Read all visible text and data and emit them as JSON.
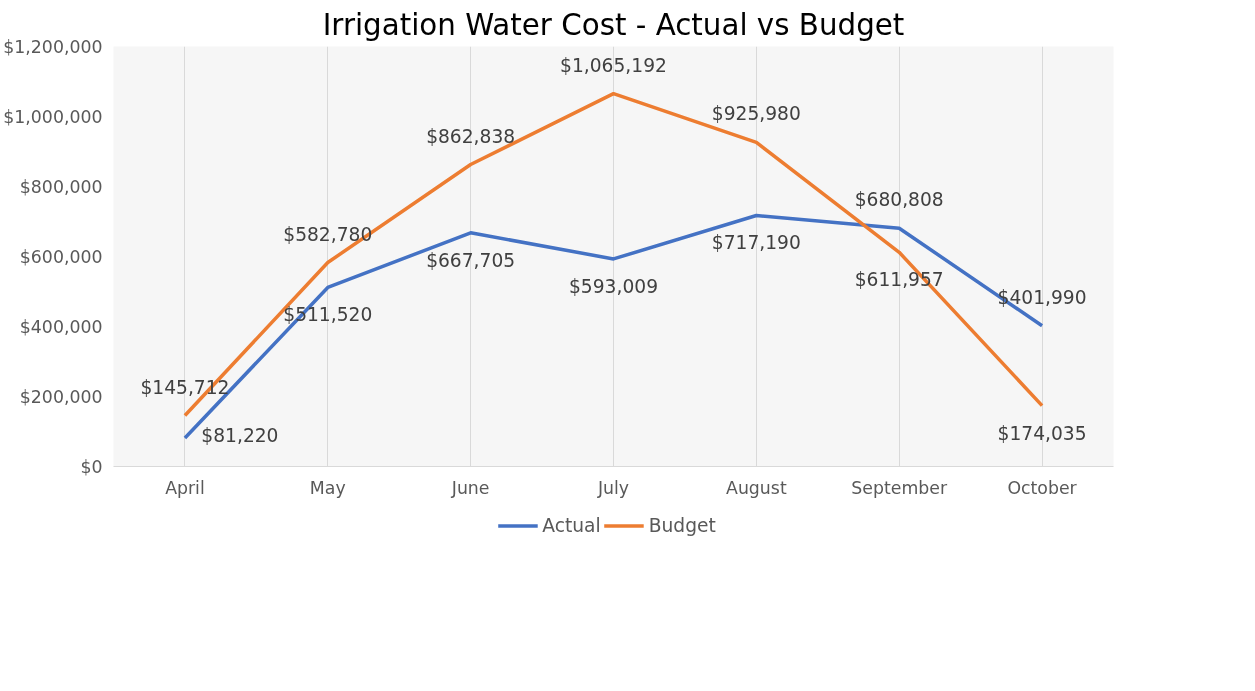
{
  "chart_data": {
    "type": "line",
    "title": "Irrigation Water Cost - Actual vs Budget",
    "categories": [
      "April",
      "May",
      "June",
      "July",
      "August",
      "September",
      "October"
    ],
    "series": [
      {
        "name": "Actual",
        "color": "#4472c4",
        "values": [
          81220,
          511520,
          667705,
          593009,
          717190,
          680808,
          401990
        ]
      },
      {
        "name": "Budget",
        "color": "#ed7d31",
        "values": [
          145712,
          582780,
          862838,
          1065192,
          925980,
          611957,
          174035
        ]
      }
    ],
    "ylim": [
      0,
      1200000
    ],
    "yticks": [
      {
        "value": 0,
        "label": "$0"
      },
      {
        "value": 200000,
        "label": "$200,000"
      },
      {
        "value": 400000,
        "label": "$400,000"
      },
      {
        "value": 600000,
        "label": "$600,000"
      },
      {
        "value": 800000,
        "label": "$800,000"
      },
      {
        "value": 1000000,
        "label": "$1,000,000"
      },
      {
        "value": 1200000,
        "label": "$1,200,000"
      }
    ],
    "value_labels": [
      [
        "$81,220",
        "$511,520",
        "$667,705",
        "$593,009",
        "$717,190",
        "$680,808",
        "$401,990"
      ],
      [
        "$145,712",
        "$582,780",
        "$862,838",
        "$1,065,192",
        "$925,980",
        "$611,957",
        "$174,035"
      ]
    ],
    "grid": "x",
    "legend": "bottom",
    "marker": "none",
    "line_style": "solid"
  }
}
